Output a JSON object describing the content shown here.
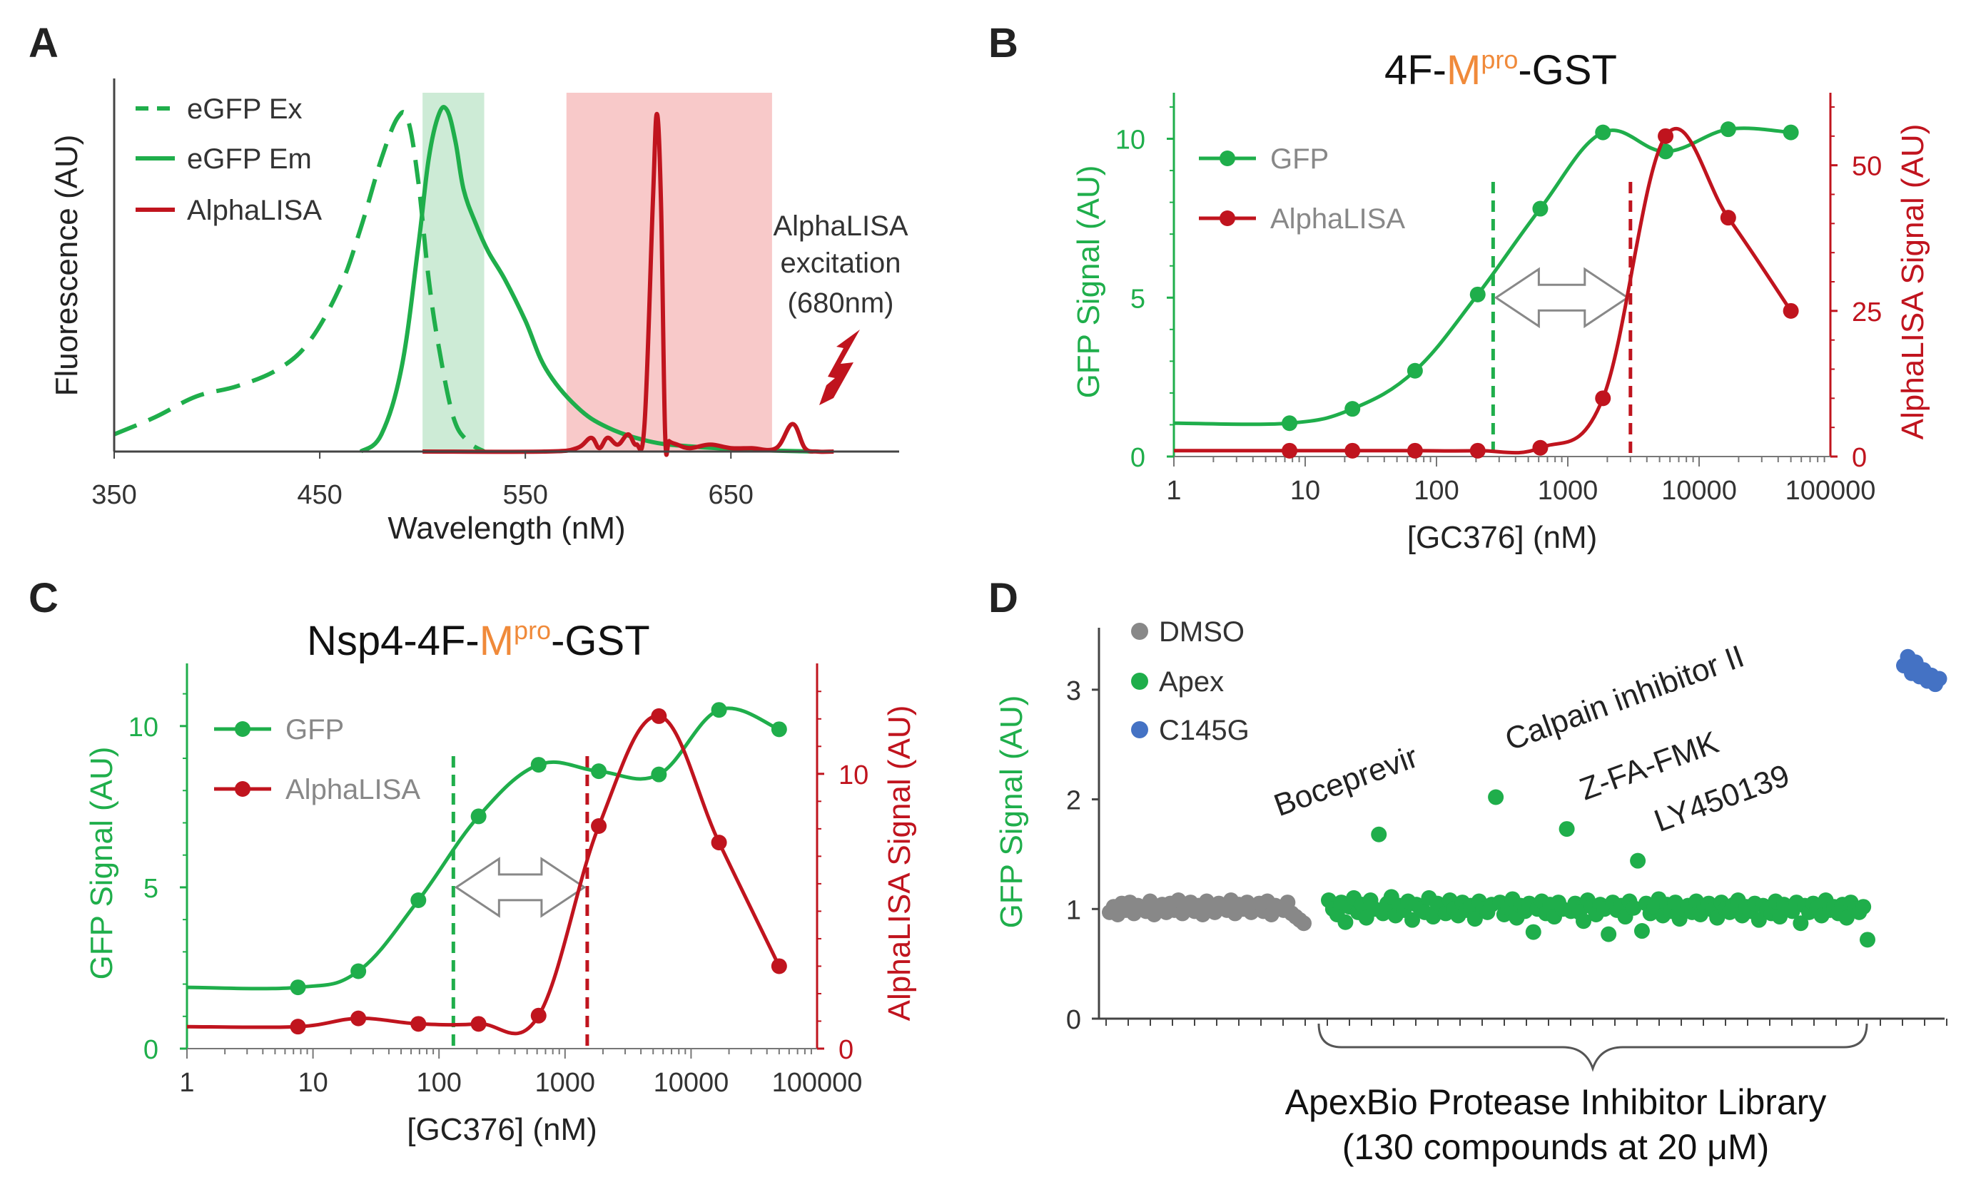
{
  "colors": {
    "green": "#1fae4b",
    "red": "#c0141e",
    "gray": "#888888",
    "blue": "#4472c4",
    "orange": "#f08a3a",
    "green_band": "#cdebd6",
    "red_band": "#f8c9c9"
  },
  "panels": {
    "A": "A",
    "B": "B",
    "C": "C",
    "D": "D"
  },
  "chart_data": [
    {
      "panel": "A",
      "type": "line",
      "title": "",
      "xlabel": "Wavelength (nM)",
      "ylabel": "Fluorescence (AU)",
      "xlim": [
        350,
        720
      ],
      "ylim": [
        0,
        1
      ],
      "xticks": [
        "350",
        "450",
        "550",
        "650"
      ],
      "xtick_values": [
        350,
        450,
        550,
        650
      ],
      "legend": [
        "eGFP Ex",
        "eGFP Em",
        "AlphaLISA"
      ],
      "bands": [
        {
          "name": "green-band",
          "x0": 500,
          "x1": 530,
          "color": "#cdebd6"
        },
        {
          "name": "red-band",
          "x0": 570,
          "x1": 670,
          "color": "#f8c9c9"
        }
      ],
      "annotation": {
        "line1": "AlphaLISA",
        "line2": "excitation",
        "line3": "(680nm)"
      },
      "series": [
        {
          "name": "eGFP Ex",
          "style": "dashed",
          "color": "#1fae4b",
          "x": [
            350,
            370,
            390,
            410,
            430,
            445,
            460,
            470,
            480,
            488,
            493,
            498,
            503,
            508,
            515,
            522,
            530
          ],
          "y": [
            0.05,
            0.1,
            0.16,
            0.19,
            0.24,
            0.32,
            0.48,
            0.65,
            0.85,
            0.97,
            0.96,
            0.78,
            0.5,
            0.3,
            0.1,
            0.03,
            0.0
          ]
        },
        {
          "name": "eGFP Em",
          "style": "solid",
          "color": "#1fae4b",
          "x": [
            470,
            480,
            490,
            498,
            503,
            508,
            512,
            516,
            520,
            526,
            532,
            540,
            550,
            560,
            575,
            590,
            610,
            630,
            660,
            690
          ],
          "y": [
            0.0,
            0.05,
            0.25,
            0.6,
            0.85,
            0.98,
            0.99,
            0.9,
            0.76,
            0.66,
            0.58,
            0.5,
            0.38,
            0.24,
            0.13,
            0.07,
            0.03,
            0.015,
            0.005,
            0.0
          ]
        },
        {
          "name": "AlphaLISA",
          "style": "solid",
          "color": "#c0141e",
          "x": [
            500,
            560,
            575,
            582,
            586,
            590,
            595,
            600,
            604,
            608,
            612,
            614,
            616,
            618,
            620,
            624,
            630,
            640,
            650,
            660,
            672,
            680,
            686,
            692,
            700
          ],
          "y": [
            0.0,
            0.0,
            0.01,
            0.04,
            0.01,
            0.04,
            0.02,
            0.05,
            0.02,
            0.08,
            0.72,
            0.98,
            0.72,
            0.05,
            0.03,
            0.02,
            0.01,
            0.02,
            0.01,
            0.01,
            0.01,
            0.08,
            0.01,
            0.0,
            0.0
          ]
        }
      ]
    },
    {
      "panel": "B",
      "type": "line",
      "title": {
        "pre": "4F-",
        "m": "M",
        "sup": "pro",
        "post": "-GST"
      },
      "xlabel": "[GC376] (nM)",
      "ylabel": "GFP Signal (AU)",
      "y2label": "AlphaLISA Signal (AU)",
      "xscale": "log",
      "xlim": [
        1,
        100000
      ],
      "xticks": [
        "1",
        "10",
        "100",
        "1000",
        "10000",
        "100000"
      ],
      "ylim": [
        0,
        11
      ],
      "yticks": [
        "0",
        "5",
        "10"
      ],
      "y2lim": [
        0,
        60
      ],
      "y2ticks": [
        "0",
        "25",
        "50"
      ],
      "legend": [
        "GFP",
        "AlphaLISA"
      ],
      "vlines": [
        {
          "x": 270,
          "color": "#1fae4b"
        },
        {
          "x": 3000,
          "color": "#c0141e"
        }
      ],
      "arrow": {
        "x0": 270,
        "x1": 3000,
        "y": 5
      },
      "series": [
        {
          "name": "GFP",
          "axis": "left",
          "color": "#1fae4b",
          "x": [
            7.6,
            22.9,
            68.6,
            206,
            617,
            1852,
            5556,
            16667,
            50000
          ],
          "y": [
            1.05,
            1.5,
            2.7,
            5.1,
            7.8,
            10.2,
            9.6,
            10.3,
            10.2
          ]
        },
        {
          "name": "AlphaLISA",
          "axis": "right",
          "color": "#c0141e",
          "x": [
            7.6,
            22.9,
            68.6,
            206,
            617,
            1852,
            5556,
            16667,
            50000
          ],
          "y": [
            1.0,
            1.0,
            1.0,
            1.0,
            1.5,
            10.0,
            55.0,
            41.0,
            25.0
          ]
        }
      ]
    },
    {
      "panel": "C",
      "type": "line",
      "title": {
        "pre": "Nsp4-4F-",
        "m": "M",
        "sup": "pro",
        "post": "-GST"
      },
      "xlabel": "[GC376] (nM)",
      "ylabel": "GFP Signal (AU)",
      "y2label": "AlphaLISA Signal (AU)",
      "xscale": "log",
      "xlim": [
        1,
        100000
      ],
      "xticks": [
        "1",
        "10",
        "100",
        "1000",
        "10000",
        "100000"
      ],
      "ylim": [
        0,
        11.5
      ],
      "yticks": [
        "0",
        "5",
        "10"
      ],
      "y2lim": [
        0,
        13.5
      ],
      "y2ticks": [
        "0",
        "10"
      ],
      "legend": [
        "GFP",
        "AlphaLISA"
      ],
      "vlines": [
        {
          "x": 130,
          "color": "#1fae4b"
        },
        {
          "x": 1500,
          "color": "#c0141e"
        }
      ],
      "arrow": {
        "x0": 130,
        "x1": 1500,
        "y": 5
      },
      "series": [
        {
          "name": "GFP",
          "axis": "left",
          "color": "#1fae4b",
          "x": [
            7.6,
            22.9,
            68.6,
            206,
            617,
            1852,
            5556,
            16667,
            50000
          ],
          "y": [
            1.9,
            2.4,
            4.6,
            7.2,
            8.8,
            8.6,
            8.5,
            10.5,
            9.9
          ]
        },
        {
          "name": "AlphaLISA",
          "axis": "right",
          "color": "#c0141e",
          "x": [
            7.6,
            22.9,
            68.6,
            206,
            617,
            1852,
            5556,
            16667,
            50000
          ],
          "y": [
            0.8,
            1.1,
            0.9,
            0.9,
            1.2,
            8.1,
            12.1,
            7.5,
            3.0
          ]
        }
      ]
    },
    {
      "panel": "D",
      "type": "scatter",
      "title": "",
      "xlabel": "",
      "ylabel": "GFP Signal (AU)",
      "ylim": [
        0,
        3.5
      ],
      "yticks": [
        "0",
        "1",
        "2",
        "3"
      ],
      "legend": [
        "DMSO",
        "Apex",
        "C145G"
      ],
      "brace_label": {
        "line1": "ApexBio Protease Inhibitor Library",
        "line2": "(130 compounds at 20 μM)"
      },
      "annotations": [
        {
          "text": "Boceprevir",
          "index": 12,
          "value": 1.68
        },
        {
          "text": "Calpain inhibitor II",
          "index": 40,
          "value": 2.02
        },
        {
          "text": "Z-FA-FMK",
          "index": 57,
          "value": 1.73
        },
        {
          "text": "LY450139",
          "index": 74,
          "value": 1.44
        }
      ],
      "dmso_values": [
        0.97,
        1.02,
        0.95,
        1.05,
        0.99,
        1.06,
        0.96,
        1.03,
        1.0,
        0.98,
        1.07,
        0.95,
        1.02,
        1.04,
        0.97,
        1.05,
        0.99,
        1.08,
        0.96,
        1.01,
        1.06,
        0.98,
        1.03,
        0.95,
        1.07,
        1.0,
        0.97,
        1.05,
        1.02,
        0.99,
        1.08,
        0.96,
        1.04,
        1.0,
        1.06,
        0.97,
        1.02,
        1.05,
        0.98,
        1.07,
        0.95,
        1.03,
        1.01,
        0.99,
        1.06,
        0.96,
        0.93,
        0.9,
        0.87
      ],
      "apex_values": [
        1.08,
        1.0,
        0.95,
        1.06,
        0.88,
        1.02,
        1.1,
        0.97,
        1.04,
        0.92,
        1.08,
        1.0,
        1.68,
        0.96,
        1.05,
        1.11,
        0.94,
        1.03,
        0.99,
        1.07,
        0.9,
        1.04,
        1.0,
        0.97,
        1.1,
        0.93,
        1.05,
        1.02,
        0.96,
        1.08,
        1.0,
        0.94,
        1.06,
        0.99,
        1.03,
        0.91,
        1.07,
        1.0,
        0.97,
        1.04,
        2.02,
        1.06,
        0.95,
        1.01,
        1.09,
        0.92,
        1.03,
        0.98,
        1.05,
        0.79,
        1.0,
        1.07,
        0.96,
        1.04,
        0.93,
        1.06,
        1.0,
        1.73,
        0.98,
        1.05,
        0.97,
        0.89,
        1.08,
        1.02,
        0.95,
        1.04,
        1.0,
        0.77,
        1.06,
        0.99,
        1.03,
        0.93,
        1.07,
        1.01,
        1.44,
        0.8,
        1.05,
        0.96,
        1.02,
        1.09,
        0.94,
        1.04,
        0.98,
        1.06,
        0.91,
        1.0,
        1.03,
        0.97,
        1.07,
        0.95,
        1.02,
        1.05,
        0.99,
        0.92,
        1.06,
        1.0,
        0.97,
        1.04,
        1.08,
        0.94,
        1.02,
        0.98,
        1.05,
        0.9,
        1.03,
        1.0,
        0.96,
        1.07,
        0.93,
        1.04,
        1.0,
        0.98,
        1.06,
        0.87,
        1.03,
        0.97,
        1.05,
        1.01,
        0.94,
        1.08,
        0.99,
        1.02,
        0.96,
        1.04,
        0.92,
        1.06,
        1.0,
        0.97,
        1.02,
        0.72
      ],
      "c145g_values": [
        3.22,
        3.3,
        3.15,
        3.25,
        3.12,
        3.18,
        3.08,
        3.13,
        3.05,
        3.1
      ]
    }
  ]
}
